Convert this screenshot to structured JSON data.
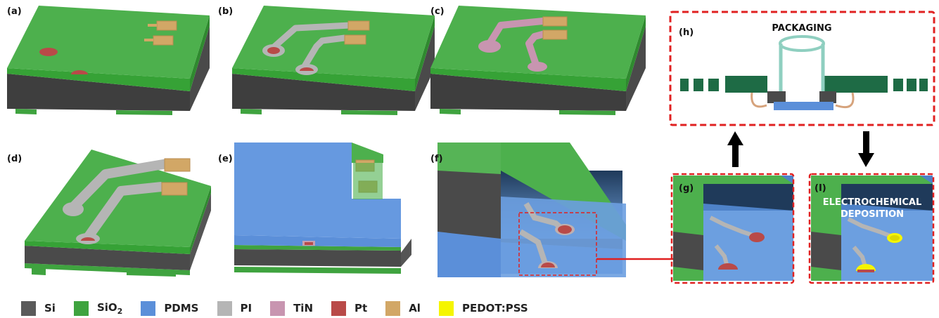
{
  "panels": {
    "a": "(a)",
    "b": "(b)",
    "c": "(c)",
    "d": "(d)",
    "e": "(e)",
    "f": "(f)",
    "g": "(g)",
    "h": "(h)",
    "i": "(I)"
  },
  "packaging_title": "PACKAGING",
  "deposition_lines": [
    "ELECTROCHEMICAL",
    "DEPOSITION"
  ],
  "legend": [
    {
      "label": "Si",
      "color": "#5a5a5a"
    },
    {
      "label": "SiO",
      "sub": "2",
      "color": "#3fa33f"
    },
    {
      "label": "PDMS",
      "color": "#5b8fd9"
    },
    {
      "label": "PI",
      "color": "#b5b5b5"
    },
    {
      "label": "TiN",
      "color": "#c895b0"
    },
    {
      "label": "Pt",
      "color": "#b94a48"
    },
    {
      "label": "Al",
      "color": "#d2a766"
    },
    {
      "label": "PEDOT:PSS",
      "color": "#f5f500"
    }
  ],
  "colors": {
    "si": "#5a5a5a",
    "sio2": "#3fa33f",
    "pdms": "#5b8fd9",
    "pi": "#b5b5b5",
    "tin": "#c895b0",
    "pt": "#b94a48",
    "al": "#d2a766",
    "pedot": "#f5f500",
    "callout": "#e02020",
    "package_green": "#1e6b45",
    "tube": "#8fcfc0",
    "wire": "#d6a37c"
  }
}
